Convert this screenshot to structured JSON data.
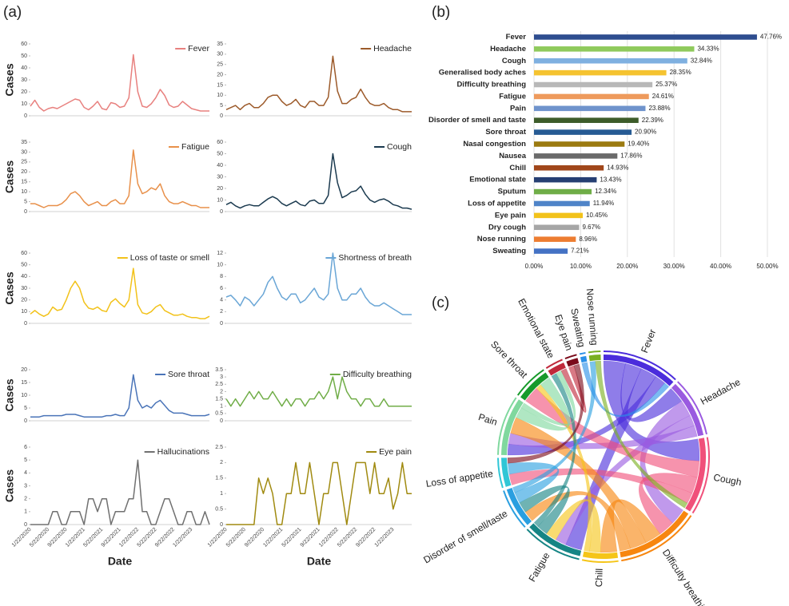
{
  "panels": [
    "(a)",
    "(b)",
    "(c)"
  ],
  "chart_data": [
    {
      "type": "line",
      "ylabel": "Cases",
      "ylim": [
        0,
        60
      ],
      "yticks": [
        0,
        10,
        20,
        30,
        40,
        50,
        60
      ],
      "series": [
        {
          "name": "Fever",
          "color": "#e8817f",
          "values": [
            8,
            13,
            7,
            4,
            6,
            7,
            6,
            8,
            10,
            12,
            14,
            13,
            7,
            5,
            8,
            12,
            6,
            5,
            11,
            10,
            7,
            8,
            15,
            51,
            20,
            8,
            7,
            10,
            15,
            22,
            17,
            9,
            7,
            8,
            12,
            9,
            6,
            5,
            4,
            4,
            4
          ]
        }
      ]
    },
    {
      "type": "line",
      "ylim": [
        0,
        35
      ],
      "yticks": [
        0,
        5,
        10,
        15,
        20,
        25,
        30,
        35
      ],
      "series": [
        {
          "name": "Headache",
          "color": "#9c5a2a",
          "values": [
            3,
            4,
            5,
            3,
            5,
            6,
            4,
            4,
            6,
            9,
            10,
            10,
            7,
            5,
            6,
            8,
            5,
            4,
            7,
            7,
            5,
            5,
            9,
            29,
            12,
            6,
            6,
            8,
            9,
            13,
            9,
            6,
            5,
            5,
            6,
            4,
            3,
            3,
            2,
            2,
            2
          ]
        }
      ]
    },
    {
      "type": "line",
      "ylabel": "Cases",
      "ylim": [
        0,
        35
      ],
      "yticks": [
        0,
        5,
        10,
        15,
        20,
        25,
        30,
        35
      ],
      "series": [
        {
          "name": "Fatigue",
          "color": "#e8904a",
          "values": [
            4,
            4,
            3,
            2,
            3,
            3,
            3,
            4,
            6,
            9,
            10,
            8,
            5,
            3,
            4,
            5,
            3,
            3,
            5,
            6,
            4,
            4,
            8,
            31,
            14,
            9,
            10,
            12,
            11,
            14,
            8,
            5,
            4,
            4,
            5,
            4,
            3,
            3,
            2,
            2,
            2
          ]
        }
      ]
    },
    {
      "type": "line",
      "ylim": [
        0,
        60
      ],
      "yticks": [
        0,
        10,
        20,
        30,
        40,
        50,
        60
      ],
      "series": [
        {
          "name": "Cough",
          "color": "#1b3a4f",
          "values": [
            6,
            8,
            5,
            3,
            5,
            6,
            5,
            5,
            8,
            11,
            13,
            11,
            7,
            5,
            7,
            9,
            6,
            5,
            9,
            10,
            7,
            7,
            14,
            50,
            25,
            12,
            14,
            17,
            18,
            22,
            15,
            10,
            8,
            10,
            11,
            9,
            6,
            5,
            3,
            3,
            2
          ]
        }
      ]
    },
    {
      "type": "line",
      "ylabel": "Cases",
      "ylim": [
        0,
        60
      ],
      "yticks": [
        0,
        10,
        20,
        30,
        40,
        50,
        60
      ],
      "series": [
        {
          "name": "Loss of taste or smell",
          "color": "#f2c21a",
          "values": [
            8,
            11,
            8,
            6,
            8,
            14,
            11,
            12,
            20,
            30,
            36,
            30,
            18,
            13,
            12,
            14,
            11,
            10,
            18,
            21,
            17,
            14,
            20,
            47,
            16,
            9,
            8,
            10,
            14,
            16,
            11,
            9,
            7,
            7,
            8,
            6,
            5,
            5,
            4,
            4,
            6
          ]
        }
      ]
    },
    {
      "type": "line",
      "ylim": [
        0,
        12
      ],
      "yticks": [
        0,
        2,
        4,
        6,
        8,
        10,
        12
      ],
      "series": [
        {
          "name": "Shortness of breath",
          "color": "#6aa6d6",
          "values": [
            4.5,
            4.8,
            4,
            3,
            4.5,
            4,
            3,
            4,
            5,
            7,
            8,
            6,
            4.5,
            4,
            5,
            5,
            3.5,
            4,
            5,
            6,
            4.5,
            4,
            5,
            12,
            6,
            4,
            4,
            5,
            5,
            6,
            4.5,
            3.5,
            3,
            3,
            3.5,
            3,
            2.5,
            2,
            1.5,
            1.5,
            1.5
          ]
        }
      ]
    },
    {
      "type": "line",
      "ylabel": "Cases",
      "ylim": [
        0,
        20
      ],
      "yticks": [
        0,
        5,
        10,
        15,
        20
      ],
      "series": [
        {
          "name": "Sore throat",
          "color": "#4a74b8",
          "values": [
            1.5,
            1.5,
            1.5,
            2,
            2,
            2,
            2,
            2,
            2.5,
            2.5,
            2.5,
            2,
            1.5,
            1.5,
            1.5,
            1.5,
            1.5,
            2,
            2,
            2.5,
            2,
            2,
            5,
            18,
            8,
            5,
            6,
            5,
            7,
            8,
            6,
            4,
            3,
            3,
            3,
            2.5,
            2,
            2,
            2,
            2,
            2.5
          ]
        }
      ]
    },
    {
      "type": "line",
      "ylim": [
        0,
        3.5
      ],
      "yticks": [
        0,
        0.5,
        1,
        1.5,
        2,
        2.5,
        3,
        3.5
      ],
      "series": [
        {
          "name": "Difficulty breathing",
          "color": "#70ad47",
          "values": [
            1.5,
            1,
            1.5,
            1,
            1.5,
            2,
            1.5,
            2,
            1.5,
            1.5,
            2,
            1.5,
            1,
            1.5,
            1,
            1.5,
            1.5,
            1,
            1.5,
            1.5,
            2,
            1.5,
            2,
            3,
            1.5,
            3,
            2,
            1.5,
            1.5,
            1,
            1.5,
            1.5,
            1,
            1,
            1.5,
            1,
            1,
            1,
            1,
            1,
            1
          ]
        }
      ]
    },
    {
      "type": "line",
      "ylabel": "Cases",
      "xlabel": "Date",
      "ylim": [
        0,
        6
      ],
      "yticks": [
        0,
        1,
        2,
        3,
        4,
        5,
        6
      ],
      "categories": [
        "1/22/2020",
        null,
        null,
        null,
        "5/22/2020",
        null,
        null,
        null,
        "9/22/2020",
        null,
        null,
        null,
        "1/22/2021",
        null,
        null,
        null,
        "5/22/2021",
        null,
        null,
        null,
        "9/22/2021",
        null,
        null,
        null,
        "1/22/2022",
        null,
        null,
        null,
        "5/22/2022",
        null,
        null,
        null,
        "9/22/2022",
        null,
        null,
        null,
        "1/22/2023",
        null,
        null,
        null,
        null
      ],
      "series": [
        {
          "name": "Hallucinations",
          "color": "#707070",
          "values": [
            0,
            0,
            0,
            0,
            0,
            1,
            1,
            0,
            0,
            1,
            1,
            1,
            0,
            2,
            2,
            1,
            2,
            2,
            0,
            1,
            1,
            1,
            2,
            2,
            5,
            1,
            1,
            0,
            0,
            1,
            2,
            2,
            1,
            0,
            0,
            1,
            1,
            0,
            0,
            1,
            0
          ]
        }
      ]
    },
    {
      "type": "line",
      "xlabel": "Date",
      "ylim": [
        0,
        2.5
      ],
      "yticks": [
        0,
        0.5,
        1,
        1.5,
        2,
        2.5
      ],
      "categories": [
        "1/22/2020",
        null,
        null,
        null,
        "5/22/2020",
        null,
        null,
        null,
        "9/22/2020",
        null,
        null,
        null,
        "1/22/2021",
        null,
        null,
        null,
        "5/22/2021",
        null,
        null,
        null,
        "9/22/2021",
        null,
        null,
        null,
        "1/22/2022",
        null,
        null,
        null,
        "5/22/2022",
        null,
        null,
        null,
        "9/22/2022",
        null,
        null,
        null,
        "1/22/2023",
        null,
        null,
        null,
        null
      ],
      "series": [
        {
          "name": "Eye pain",
          "color": "#a08a10",
          "values": [
            0,
            0,
            0,
            0,
            0,
            0,
            0,
            1.5,
            1,
            1.5,
            1,
            0,
            0,
            1,
            1,
            2,
            1,
            1,
            2,
            1,
            0,
            1,
            1,
            2,
            2,
            1,
            0,
            1,
            2,
            2,
            2,
            1,
            2,
            1,
            1,
            1.5,
            0.5,
            1,
            2,
            1,
            1
          ]
        }
      ]
    },
    {
      "type": "bar",
      "orientation": "horizontal",
      "grid": true,
      "categories": [
        "Fever",
        "Headache",
        "Cough",
        "Generalised body aches",
        "Difficulty breathing",
        "Fatigue",
        "Pain",
        "Disorder of smell and taste",
        "Sore throat",
        "Nasal congestion",
        "Nausea",
        "Chill",
        "Emotional state",
        "Sputum",
        "Loss of appetite",
        "Eye pain",
        "Dry cough",
        "Nose running",
        "Sweating"
      ],
      "values": [
        47.76,
        34.33,
        32.84,
        28.35,
        25.37,
        24.61,
        23.88,
        22.39,
        20.9,
        19.4,
        17.86,
        14.93,
        13.43,
        12.34,
        11.94,
        10.45,
        9.67,
        8.96,
        7.21
      ],
      "value_labels": [
        "47.76%",
        "34.33%",
        "32.84%",
        "28.35%",
        "25.37%",
        "24.61%",
        "23.88%",
        "22.39%",
        "20.90%",
        "19.40%",
        "17.86%",
        "14.93%",
        "13.43%",
        "12.34%",
        "11.94%",
        "10.45%",
        "9.67%",
        "8.96%",
        "7.21%"
      ],
      "colors": [
        "#2e4d8f",
        "#8fca5c",
        "#7fb0e0",
        "#f5c330",
        "#b8b8b8",
        "#ee9a5c",
        "#6f93cc",
        "#3d5c2a",
        "#265b94",
        "#9b7a10",
        "#6a6a6a",
        "#a0461a",
        "#263f73",
        "#6fad47",
        "#4f84c8",
        "#f2c21a",
        "#a6a6a6",
        "#ed7d31",
        "#4472c4"
      ],
      "xlim": [
        0,
        50
      ],
      "xticks": [
        {
          "value": 0,
          "label": "0.00%"
        },
        {
          "value": 10,
          "label": "10.00%"
        },
        {
          "value": 20,
          "label": "20.00%"
        },
        {
          "value": 30,
          "label": "30.00%"
        },
        {
          "value": 40,
          "label": "40.00%"
        },
        {
          "value": 50,
          "label": "50.00%"
        }
      ]
    },
    {
      "type": "chord",
      "nodes": [
        {
          "name": "Fever",
          "color": "#4b2ddc"
        },
        {
          "name": "Headache",
          "color": "#9a5ae0"
        },
        {
          "name": "Cough",
          "color": "#f0507a"
        },
        {
          "name": "Difficulty breathing",
          "color": "#f7860f"
        },
        {
          "name": "Chill",
          "color": "#f5c518"
        },
        {
          "name": "Fatigue",
          "color": "#168585"
        },
        {
          "name": "Disorder of smell/taste",
          "color": "#2a9fe0"
        },
        {
          "name": "Loss of appetite",
          "color": "#30c6d6"
        },
        {
          "name": "Pain",
          "color": "#80d89e"
        },
        {
          "name": "Sore throat",
          "color": "#179a2a"
        },
        {
          "name": "Emotional state",
          "color": "#c0283a"
        },
        {
          "name": "Eye pain",
          "color": "#7a0a1a"
        },
        {
          "name": "Sweating",
          "color": "#2a90e8"
        },
        {
          "name": "Nose running",
          "color": "#7ab020"
        }
      ],
      "links": [
        {
          "source": "Fever",
          "target": "Cough",
          "value": 4
        },
        {
          "source": "Fever",
          "target": "Headache",
          "value": 3
        },
        {
          "source": "Fever",
          "target": "Fatigue",
          "value": 3
        },
        {
          "source": "Fever",
          "target": "Pain",
          "value": 2
        },
        {
          "source": "Headache",
          "target": "Difficulty breathing",
          "value": 3
        },
        {
          "source": "Headache",
          "target": "Fatigue",
          "value": 2
        },
        {
          "source": "Headache",
          "target": "Pain",
          "value": 2
        },
        {
          "source": "Cough",
          "target": "Sore throat",
          "value": 3
        },
        {
          "source": "Cough",
          "target": "Difficulty breathing",
          "value": 3
        },
        {
          "source": "Cough",
          "target": "Loss of appetite",
          "value": 2
        },
        {
          "source": "Difficulty breathing",
          "target": "Chill",
          "value": 3
        },
        {
          "source": "Difficulty breathing",
          "target": "Pain",
          "value": 3
        },
        {
          "source": "Difficulty breathing",
          "target": "Disorder of smell/taste",
          "value": 2
        },
        {
          "source": "Chill",
          "target": "Fatigue",
          "value": 2
        },
        {
          "source": "Chill",
          "target": "Sore throat",
          "value": 1
        },
        {
          "source": "Fatigue",
          "target": "Disorder of smell/taste",
          "value": 2
        },
        {
          "source": "Fatigue",
          "target": "Emotional state",
          "value": 1
        },
        {
          "source": "Disorder of smell/taste",
          "target": "Loss of appetite",
          "value": 2
        },
        {
          "source": "Disorder of smell/taste",
          "target": "Nose running",
          "value": 1
        },
        {
          "source": "Pain",
          "target": "Sore throat",
          "value": 2
        },
        {
          "source": "Pain",
          "target": "Emotional state",
          "value": 1
        },
        {
          "source": "Emotional state",
          "target": "Eye pain",
          "value": 1
        },
        {
          "source": "Sweating",
          "target": "Fever",
          "value": 1
        },
        {
          "source": "Nose running",
          "target": "Cough",
          "value": 1
        },
        {
          "source": "Eye pain",
          "target": "Loss of appetite",
          "value": 1
        }
      ]
    }
  ]
}
